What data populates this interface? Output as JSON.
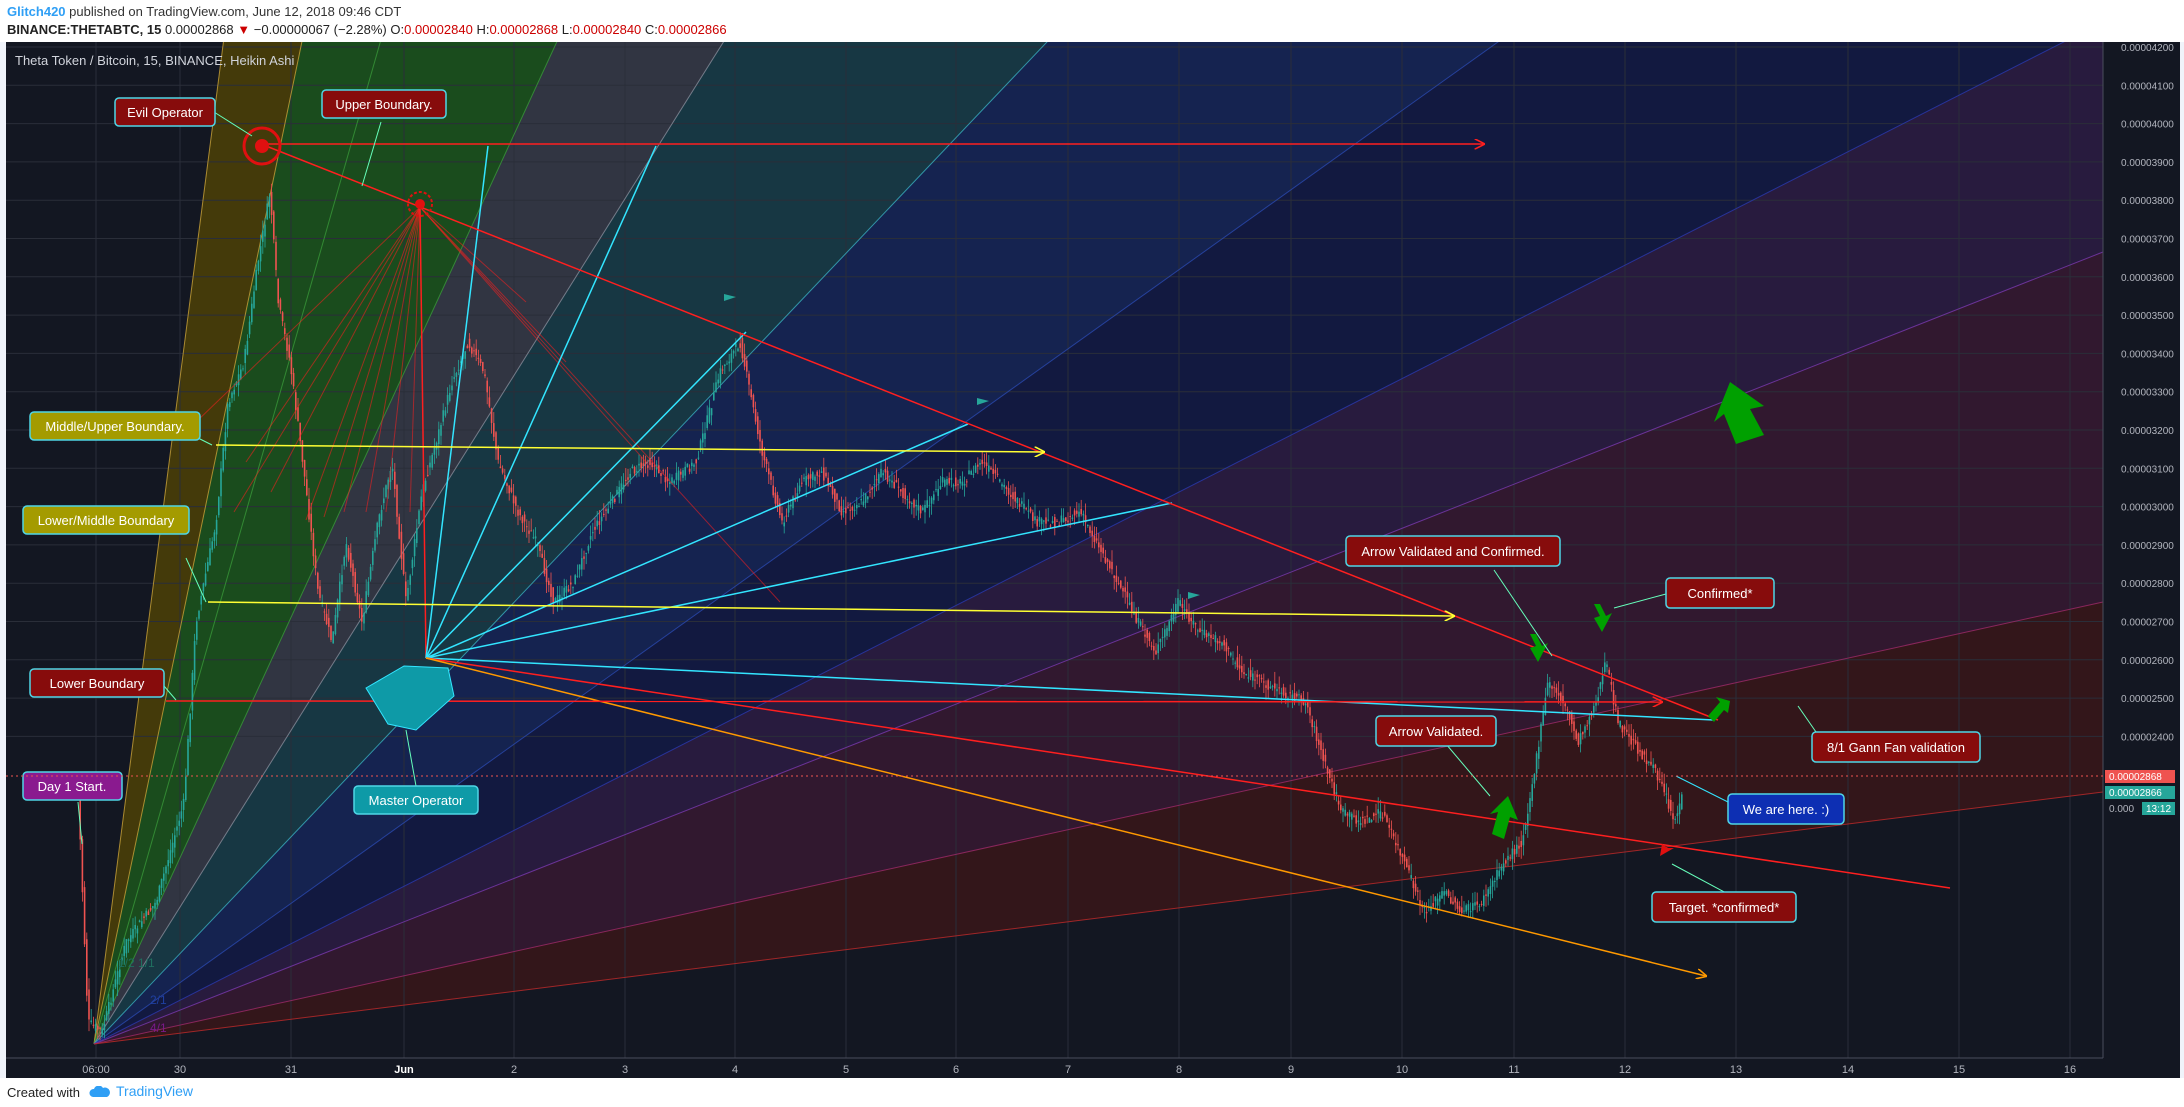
{
  "header": {
    "author": "Glitch420",
    "published_text": "published on TradingView.com, June 12, 2018 09:46 CDT",
    "symbol": "BINANCE:THETABTC, 15",
    "last": "0.00002868",
    "change_arrow": "▼",
    "change": "−0.00000067 (−2.28%)",
    "o_label": "O:",
    "o_val": "0.00002840",
    "h_label": "H:",
    "h_val": "0.00002868",
    "l_label": "L:",
    "l_val": "0.00002840",
    "c_label": "C:",
    "c_val": "0.00002866"
  },
  "chart": {
    "title": "Theta Token / Bitcoin, 15, BINANCE, Heikin Ashi",
    "y_ticks": [
      "0.00004200",
      "0.00004100",
      "0.00004000",
      "0.00003900",
      "0.00003800",
      "0.00003700",
      "0.00003600",
      "0.00003500",
      "0.00003400",
      "0.00003300",
      "0.00003200",
      "0.00003100",
      "0.00003000",
      "0.00002900",
      "0.00002800",
      "0.00002700",
      "0.00002600",
      "0.00002500",
      "0.00002400"
    ],
    "y_tick_values": [
      4.2e-05,
      4.1e-05,
      4e-05,
      3.9e-05,
      3.8e-05,
      3.7e-05,
      3.6e-05,
      3.5e-05,
      3.4e-05,
      3.3e-05,
      3.2e-05,
      3.1e-05,
      3e-05,
      2.9e-05,
      2.8e-05,
      2.7e-05,
      2.6e-05,
      2.5e-05,
      2.4e-05
    ],
    "x_ticks": [
      "06:00",
      "30",
      "31",
      "Jun",
      "2",
      "3",
      "4",
      "5",
      "6",
      "7",
      "8",
      "9",
      "10",
      "11",
      "12",
      "13",
      "14",
      "15",
      "16"
    ],
    "price_labels": {
      "last": "0.00002868",
      "close": "0.00002866",
      "countdown": "13:12",
      "clipped": "0.000"
    },
    "fan_labels": [
      "1/2 1/1",
      "2/1",
      "4/1"
    ],
    "colors": {
      "background": "#131722",
      "up": "#26a69a",
      "down": "#ef5350",
      "red_line": "#ff1f1f",
      "yellow_line": "#ffff33",
      "cyan_line": "#33e5ff",
      "orange_line": "#ff9900",
      "arrow_green": "#00a000"
    }
  },
  "annotations": {
    "evil_operator": "Evil Operator",
    "upper_boundary": "Upper Boundary.",
    "middle_upper_boundary": "Middle/Upper Boundary.",
    "lower_middle_boundary": "Lower/Middle Boundary",
    "lower_boundary": "Lower Boundary",
    "day1_start": "Day 1 Start.",
    "master_operator": "Master Operator",
    "arrow_validated_confirmed": "Arrow Validated and Confirmed.",
    "confirmed": "Confirmed*",
    "gann_fan_validation": "8/1 Gann Fan validation",
    "arrow_validated": "Arrow Validated.",
    "we_are_here": "We are here. :)",
    "target_confirmed": "Target. *confirmed*"
  },
  "footer": {
    "created_with": "Created with",
    "brand": "TradingView"
  }
}
